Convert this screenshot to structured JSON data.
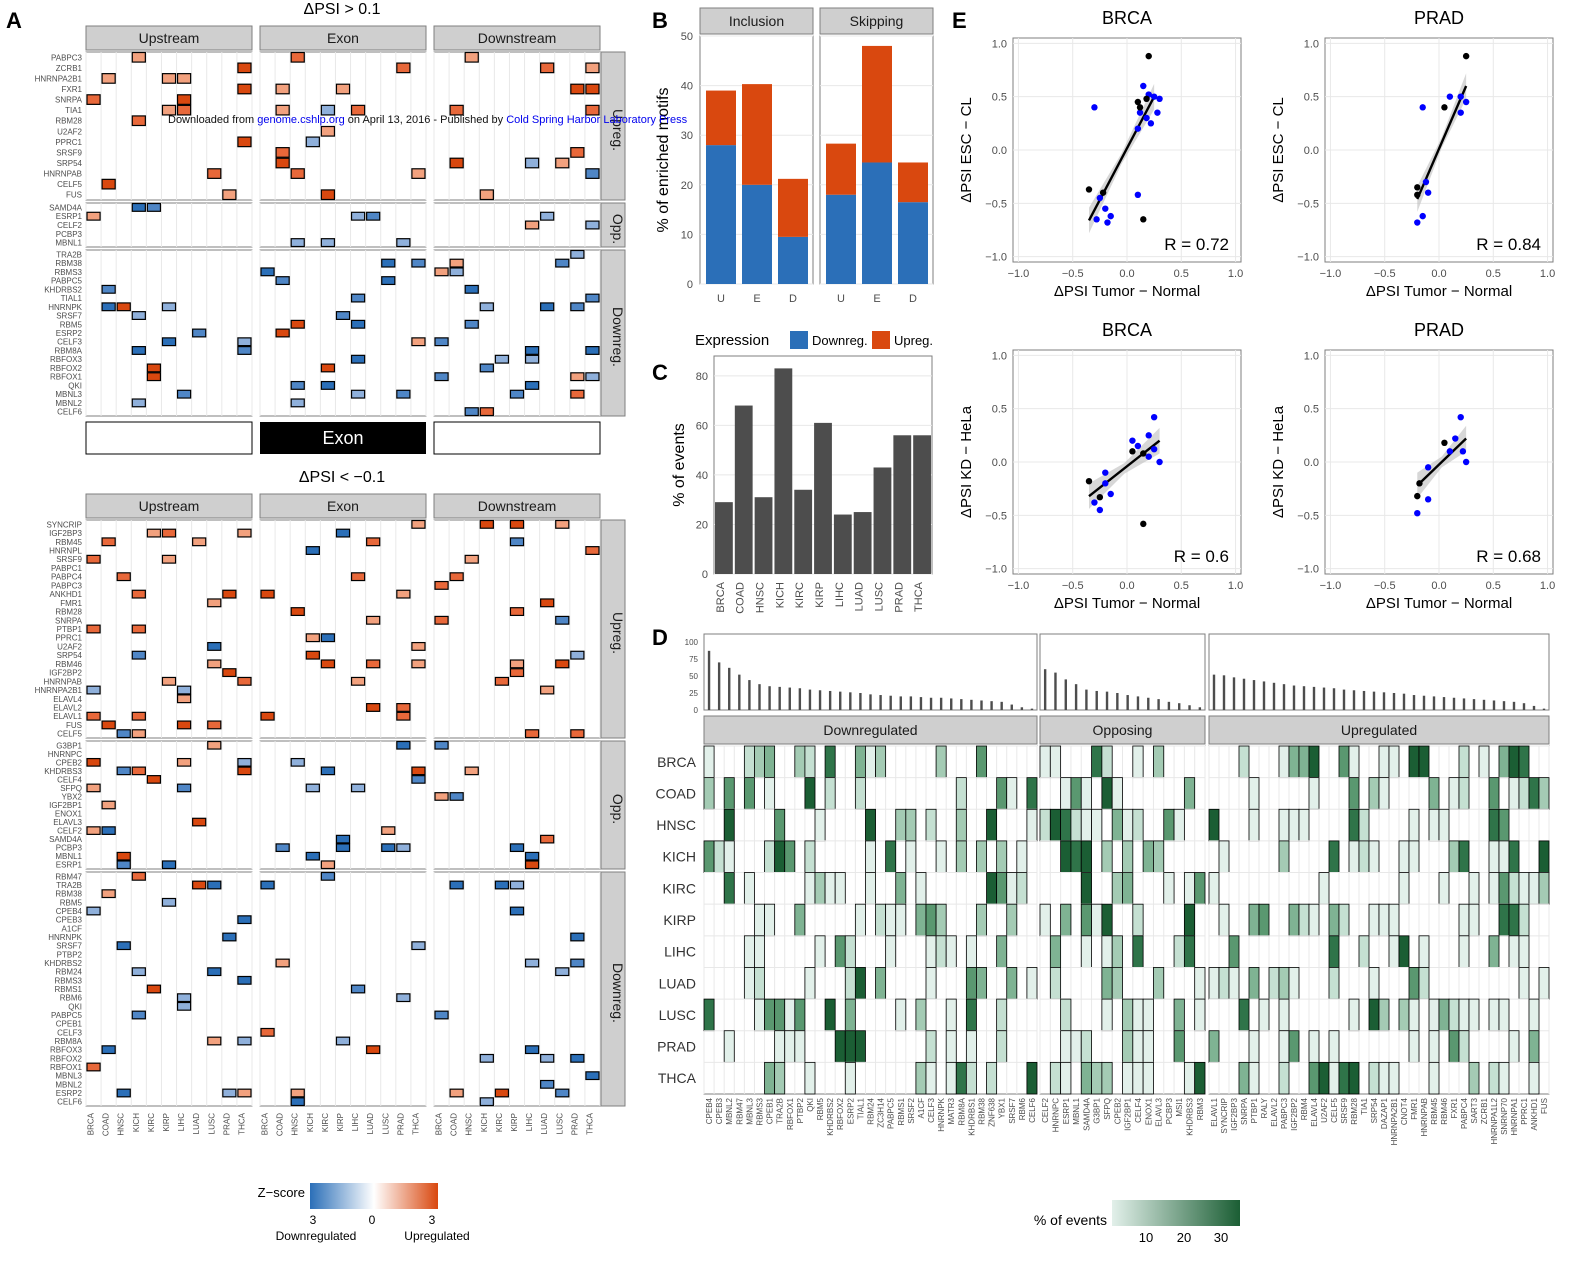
{
  "watermark": {
    "prefix": "Downloaded from ",
    "site": "genome.cshlp.org",
    "middle": " on April 13, 2016 - Published by ",
    "publisher": "Cold Spring Harbor Laboratory Press"
  },
  "panel_labels": {
    "a": "A",
    "b": "B",
    "c": "C",
    "d": "D",
    "e": "E"
  },
  "colors": {
    "down": "#2b6fb8",
    "up": "#d9480f",
    "bar_gray": "#4d4d4d",
    "green": "#1b5e34",
    "blue_dot": "#0000ff"
  },
  "chart_data": [
    {
      "id": "A",
      "type": "heatmap",
      "title_top": "ΔPSI > 0.1",
      "title_bottom": "ΔPSI < −0.1",
      "facets": [
        "Upstream",
        "Exon",
        "Downstream"
      ],
      "row_groups": [
        "Upreg.",
        "Opp.",
        "Downreg."
      ],
      "exon_label": "Exon",
      "categories": [
        "BRCA",
        "COAD",
        "HNSC",
        "KICH",
        "KIRC",
        "KIRP",
        "LIHC",
        "LUAD",
        "LUSC",
        "PRAD",
        "THCA"
      ],
      "top_rows": {
        "Upreg.": [
          "PABPC3",
          "ZCRB1",
          "HNRNPA2B1",
          "FXR1",
          "SNRPA",
          "TIA1",
          "RBM28",
          "U2AF2",
          "PPRC1",
          "SRSF9",
          "SRP54",
          "HNRNPAB",
          "CELF5",
          "FUS"
        ],
        "Opp.": [
          "SAMD4A",
          "ESRP1",
          "CELF2",
          "PCBP3",
          "MBNL1"
        ],
        "Downreg.": [
          "TRA2B",
          "RBM38",
          "RBMS3",
          "PABPC5",
          "KHDRBS2",
          "TIAL1",
          "HNRNPK",
          "SRSF7",
          "RBM5",
          "ESRP2",
          "CELF3",
          "RBM8A",
          "RBFOX3",
          "RBFOX2",
          "RBFOX1",
          "QKI",
          "MBNL3",
          "MBNL2",
          "CELF6"
        ]
      },
      "bottom_rows": {
        "Upreg.": [
          "SYNCRIP",
          "IGF2BP3",
          "RBM45",
          "HNRNPL",
          "SRSF9",
          "PABPC1",
          "PABPC4",
          "PABPC3",
          "ANKHD1",
          "FMR1",
          "RBM28",
          "SNRPA",
          "PTBP1",
          "PPRC1",
          "U2AF2",
          "SRP54",
          "RBM46",
          "IGF2BP2",
          "HNRNPAB",
          "HNRNPA2B1",
          "ELAVL4",
          "ELAVL2",
          "ELAVL1",
          "FUS",
          "CELF5"
        ],
        "Opp.": [
          "G3BP1",
          "HNRNPC",
          "CPEB2",
          "KHDRBS3",
          "CELF4",
          "SFPQ",
          "YBX2",
          "IGF2BP1",
          "ENOX1",
          "ELAVL3",
          "CELF2",
          "SAMD4A",
          "PCBP3",
          "MBNL1",
          "ESRP1"
        ],
        "Downreg.": [
          "RBM47",
          "TRA2B",
          "RBM38",
          "RBM5",
          "CPEB4",
          "CPEB3",
          "A1CF",
          "HNRNPK",
          "SRSF7",
          "PTBP2",
          "KHDRBS2",
          "RBM24",
          "RBMS3",
          "RBMS1",
          "RBM6",
          "QKI",
          "PABPC5",
          "CPEB1",
          "CELF3",
          "RBM8A",
          "RBFOX3",
          "RBFOX2",
          "RBFOX1",
          "MBNL3",
          "MBNL2",
          "ESRP2",
          "CELF6"
        ]
      },
      "legend": {
        "title": "Z−score",
        "ticks": [
          "3",
          "0",
          "3"
        ],
        "low_label": "Downregulated",
        "high_label": "Upregulated"
      }
    },
    {
      "id": "B",
      "type": "bar",
      "stacked": true,
      "facets": [
        "Inclusion",
        "Skipping"
      ],
      "categories": [
        "U",
        "E",
        "D"
      ],
      "ylabel": "% of enriched motifs",
      "ylim": [
        0,
        50
      ],
      "yticks": [
        "0",
        "10",
        "20",
        "30",
        "40",
        "50"
      ],
      "series": [
        {
          "name": "Downreg.",
          "Inclusion": [
            28,
            20,
            9.5
          ],
          "Skipping": [
            18,
            24.5,
            16.5
          ]
        },
        {
          "name": "Upreg.",
          "Inclusion": [
            11,
            20.3,
            11.7
          ],
          "Skipping": [
            10.3,
            23.5,
            8
          ]
        }
      ],
      "legend_title": "Expression",
      "legend_items": [
        "Downreg.",
        "Upreg."
      ]
    },
    {
      "id": "C",
      "type": "bar",
      "categories": [
        "BRCA",
        "COAD",
        "HNSC",
        "KICH",
        "KIRC",
        "KIRP",
        "LIHC",
        "LUAD",
        "LUSC",
        "PRAD",
        "THCA"
      ],
      "values": [
        29,
        68,
        31,
        83,
        34,
        61,
        24,
        25,
        43,
        56,
        56
      ],
      "ylabel": "% of events",
      "ylim": [
        0,
        88
      ],
      "yticks": [
        "0",
        "20",
        "40",
        "60",
        "80"
      ]
    },
    {
      "id": "D",
      "type": "heatmap",
      "facets": [
        "Downregulated",
        "Opposing",
        "Upregulated"
      ],
      "bar_yticks": [
        "100",
        "75",
        "50",
        "25",
        "0"
      ],
      "rows": [
        "BRCA",
        "COAD",
        "HNSC",
        "KICH",
        "KIRC",
        "KIRP",
        "LIHC",
        "LUAD",
        "LUSC",
        "PRAD",
        "THCA"
      ],
      "columns_down": [
        "CPEB4",
        "CPEB3",
        "MBNL2",
        "RBM47",
        "MBNL3",
        "RBMS3",
        "CPEB1",
        "TRA2B",
        "RBFOX1",
        "PTBP2",
        "QKI",
        "RBM5",
        "KHDRBS2",
        "RBFOX2",
        "ESRP2",
        "TIAL1",
        "RBM24",
        "ZC3H14",
        "PABPC5",
        "RBMS1",
        "SRSF2",
        "A1CF",
        "CELF3",
        "HNRNPK",
        "MATR3",
        "RBM8A",
        "KHDRBS1",
        "RBM38",
        "ZNF638",
        "YBX1",
        "SRSF7",
        "RBM6",
        "CELF6"
      ],
      "columns_opp": [
        "CELF2",
        "HNRNPC",
        "ESRP1",
        "MBNL1",
        "SAMD4A",
        "G3BP1",
        "SFPQ",
        "CPEB2",
        "IGF2BP1",
        "CELF4",
        "ENOX1",
        "ELAVL3",
        "PCBP3",
        "MSI1",
        "KHDRBS3",
        "RBM3"
      ],
      "columns_up": [
        "ELAVL1",
        "SYNCRIP",
        "IGF2BP3",
        "SNRPA",
        "PTBP1",
        "RALY",
        "ELAVL2",
        "PABPC3",
        "IGF2BP2",
        "RBM4",
        "ELAVL4",
        "U2AF2",
        "CELF5",
        "SRSF9",
        "RBM28",
        "TIA1",
        "SRP54",
        "DAZAP1",
        "HNRNPA2B1",
        "CNOT4",
        "FMR1",
        "HNRNPAB",
        "RBM45",
        "RBM46",
        "FXR1",
        "PABPC4",
        "SART3",
        "ZCRB1",
        "HNRNPA1L2",
        "SNRNP70",
        "HNRNPA1",
        "PPRC1",
        "ANKHD1",
        "FUS"
      ],
      "bars_down": [
        87,
        70,
        62,
        52,
        44,
        38,
        35,
        34,
        33,
        32,
        30,
        29,
        28,
        27,
        26,
        25,
        23,
        22,
        21,
        20,
        20,
        19,
        18,
        18,
        17,
        16,
        15,
        14,
        13,
        12,
        8,
        4,
        2
      ],
      "bars_opp": [
        60,
        55,
        45,
        38,
        30,
        28,
        27,
        25,
        22,
        20,
        18,
        16,
        12,
        10,
        7,
        4
      ],
      "bars_up": [
        52,
        51,
        48,
        46,
        44,
        42,
        40,
        38,
        36,
        35,
        34,
        33,
        32,
        30,
        29,
        28,
        27,
        26,
        25,
        24,
        22,
        21,
        20,
        19,
        18,
        17,
        16,
        15,
        14,
        13,
        12,
        10,
        6,
        2
      ],
      "legend": {
        "title": "% of events",
        "ticks": [
          "10",
          "20",
          "30"
        ]
      }
    },
    {
      "id": "E",
      "type": "scatter",
      "xlabel": "ΔPSI Tumor − Normal",
      "xticks": [
        "−1.0",
        "−0.5",
        "0.0",
        "0.5",
        "1.0"
      ],
      "yticks": [
        "1.0",
        "0.5",
        "0.0",
        "−0.5",
        "−1.0"
      ],
      "xlim": [
        -1.05,
        1.05
      ],
      "ylim": [
        -1.05,
        1.05
      ],
      "panels": [
        {
          "title": "BRCA",
          "ylabel": "ΔPSI ESC − CL",
          "r_label": "R = 0.72",
          "fit": [
            [
              -0.35,
              -0.66
            ],
            [
              0.25,
              0.5
            ]
          ],
          "black": [
            [
              0.2,
              0.88
            ],
            [
              0.1,
              0.45
            ],
            [
              0.18,
              0.48
            ],
            [
              0.12,
              0.4
            ],
            [
              -0.35,
              -0.37
            ],
            [
              -0.22,
              -0.4
            ],
            [
              0.15,
              -0.65
            ]
          ],
          "blue": [
            [
              -0.3,
              0.4
            ],
            [
              0.15,
              0.6
            ],
            [
              0.2,
              0.52
            ],
            [
              0.25,
              0.5
            ],
            [
              0.3,
              0.48
            ],
            [
              0.18,
              0.3
            ],
            [
              0.22,
              0.25
            ],
            [
              0.1,
              0.2
            ],
            [
              0.28,
              0.35
            ],
            [
              -0.25,
              -0.45
            ],
            [
              -0.2,
              -0.55
            ],
            [
              -0.15,
              -0.62
            ],
            [
              -0.28,
              -0.65
            ],
            [
              -0.18,
              -0.68
            ],
            [
              0.1,
              -0.42
            ],
            [
              0.12,
              0.35
            ]
          ]
        },
        {
          "title": "PRAD",
          "ylabel": "ΔPSI ESC − CL",
          "r_label": "R = 0.84",
          "fit": [
            [
              -0.2,
              -0.46
            ],
            [
              0.25,
              0.6
            ]
          ],
          "black": [
            [
              0.25,
              0.88
            ],
            [
              0.05,
              0.4
            ],
            [
              -0.2,
              -0.35
            ],
            [
              -0.2,
              -0.42
            ]
          ],
          "blue": [
            [
              -0.15,
              0.4
            ],
            [
              0.1,
              0.5
            ],
            [
              0.2,
              0.5
            ],
            [
              0.25,
              0.45
            ],
            [
              0.2,
              0.35
            ],
            [
              -0.1,
              -0.4
            ],
            [
              -0.15,
              -0.62
            ],
            [
              -0.2,
              -0.68
            ],
            [
              -0.12,
              -0.3
            ]
          ]
        },
        {
          "title": "BRCA",
          "ylabel": "ΔPSI KD − HeLa",
          "r_label": "R = 0.6",
          "fit": [
            [
              -0.35,
              -0.32
            ],
            [
              0.3,
              0.2
            ]
          ],
          "black": [
            [
              -0.35,
              -0.18
            ],
            [
              -0.25,
              -0.33
            ],
            [
              0.05,
              0.1
            ],
            [
              0.15,
              0.08
            ],
            [
              0.15,
              -0.58
            ]
          ],
          "blue": [
            [
              0.25,
              0.42
            ],
            [
              0.2,
              0.25
            ],
            [
              0.05,
              0.2
            ],
            [
              0.1,
              0.15
            ],
            [
              0.3,
              0.0
            ],
            [
              0.2,
              0.05
            ],
            [
              -0.2,
              -0.1
            ],
            [
              -0.3,
              -0.38
            ],
            [
              -0.25,
              -0.45
            ],
            [
              -0.15,
              -0.3
            ],
            [
              -0.2,
              -0.2
            ],
            [
              0.25,
              0.12
            ]
          ]
        },
        {
          "title": "PRAD",
          "ylabel": "ΔPSI KD − HeLa",
          "r_label": "R = 0.68",
          "fit": [
            [
              -0.2,
              -0.22
            ],
            [
              0.25,
              0.22
            ]
          ],
          "black": [
            [
              -0.2,
              -0.32
            ],
            [
              -0.18,
              -0.2
            ],
            [
              0.05,
              0.18
            ]
          ],
          "blue": [
            [
              0.2,
              0.42
            ],
            [
              0.15,
              0.22
            ],
            [
              0.1,
              0.1
            ],
            [
              0.25,
              0.0
            ],
            [
              -0.1,
              -0.05
            ],
            [
              -0.2,
              -0.48
            ],
            [
              -0.1,
              -0.35
            ],
            [
              0.22,
              0.1
            ]
          ]
        }
      ]
    }
  ]
}
